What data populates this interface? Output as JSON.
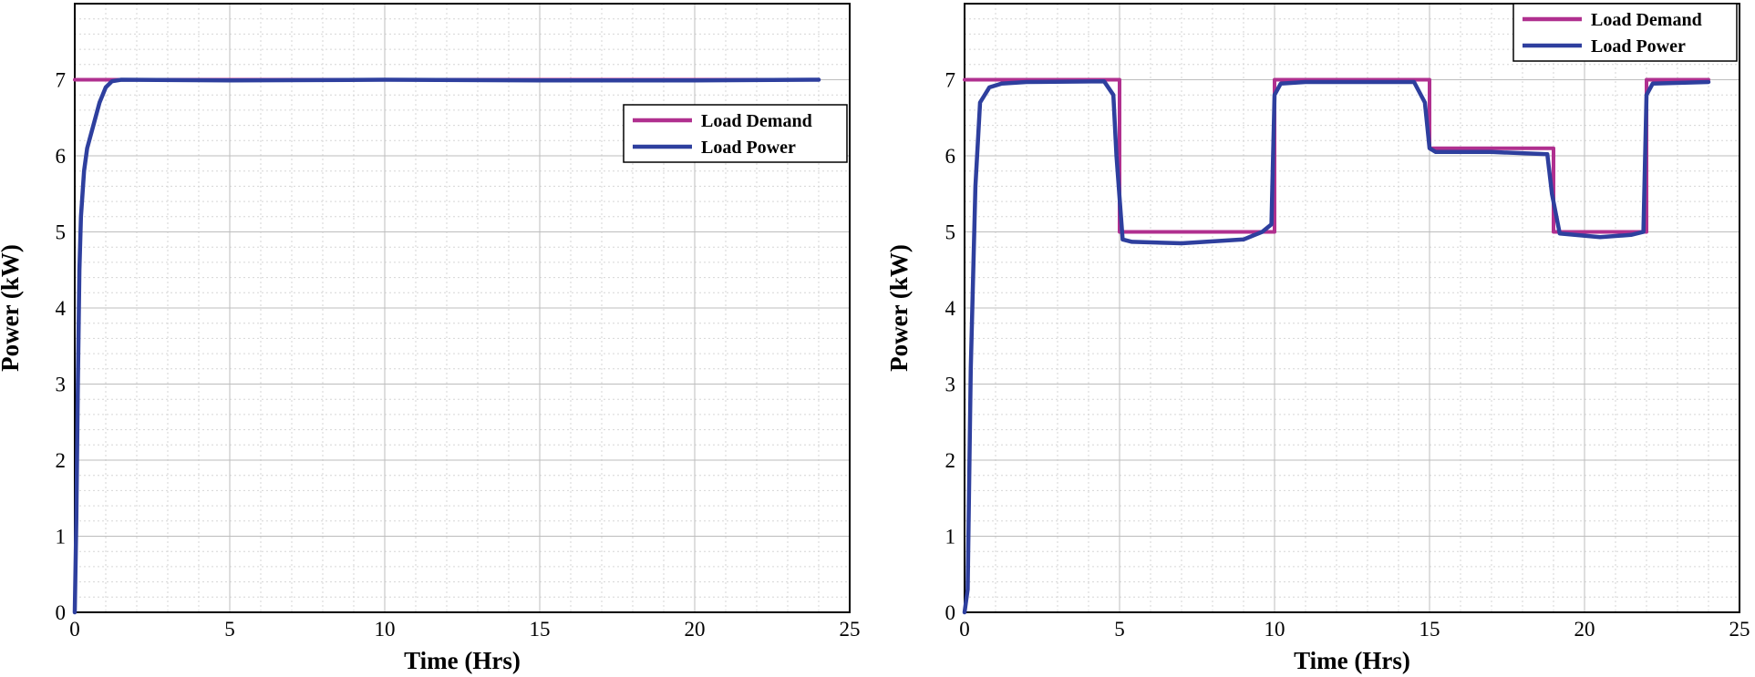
{
  "colors": {
    "load_demand": "#B0308F",
    "load_power": "#2E3F9E",
    "grid_major": "#bdbdbd",
    "grid_minor": "#d6d6d6"
  },
  "chart_data": [
    {
      "type": "line",
      "title": "",
      "xlabel": "Time (Hrs)",
      "ylabel": "Power (kW)",
      "xlim": [
        0,
        25
      ],
      "ylim": [
        0,
        8
      ],
      "xticks": [
        0,
        5,
        10,
        15,
        20,
        25
      ],
      "xtick_labels": [
        "0",
        "5",
        "10",
        "15",
        "20",
        "25"
      ],
      "yticks": [
        0,
        1,
        2,
        3,
        4,
        5,
        6,
        7
      ],
      "ytick_labels": [
        "0",
        "1",
        "2",
        "3",
        "4",
        "5",
        "6",
        "7"
      ],
      "grid": true,
      "legend_position": "upper-right",
      "series": [
        {
          "name": "Load Demand",
          "color": "#B0308F",
          "x": [
            0,
            24
          ],
          "y": [
            7,
            7
          ]
        },
        {
          "name": "Load Power",
          "color": "#2E3F9E",
          "x": [
            0,
            0.05,
            0.1,
            0.15,
            0.2,
            0.3,
            0.4,
            0.6,
            0.8,
            1.0,
            1.2,
            1.5,
            5,
            10,
            15,
            20,
            24
          ],
          "y": [
            0,
            1.2,
            3.0,
            4.5,
            5.2,
            5.8,
            6.1,
            6.4,
            6.7,
            6.9,
            6.98,
            7.0,
            6.99,
            7.0,
            6.99,
            6.99,
            7.0
          ]
        }
      ]
    },
    {
      "type": "line",
      "title": "",
      "xlabel": "Time (Hrs)",
      "ylabel": "Power (kW)",
      "xlim": [
        0,
        25
      ],
      "ylim": [
        0,
        8
      ],
      "xticks": [
        0,
        5,
        10,
        15,
        20,
        25
      ],
      "xtick_labels": [
        "0",
        "5",
        "10",
        "15",
        "20",
        "25"
      ],
      "yticks": [
        0,
        1,
        2,
        3,
        4,
        5,
        6,
        7
      ],
      "ytick_labels": [
        "0",
        "1",
        "2",
        "3",
        "4",
        "5",
        "6",
        "7"
      ],
      "grid": true,
      "legend_position": "top-right",
      "series": [
        {
          "name": "Load Demand",
          "color": "#B0308F",
          "x": [
            0,
            5,
            5,
            10,
            10,
            15,
            15,
            19,
            19,
            22,
            22,
            24
          ],
          "y": [
            7,
            7,
            5,
            5,
            7,
            7,
            6.1,
            6.1,
            5,
            5,
            7,
            7
          ]
        },
        {
          "name": "Load Power",
          "color": "#2E3F9E",
          "x": [
            0,
            0.1,
            0.2,
            0.35,
            0.5,
            0.8,
            1.2,
            2,
            4.5,
            4.8,
            4.9,
            5.1,
            5.4,
            7,
            9,
            9.6,
            9.9,
            10.0,
            10.2,
            11,
            14.5,
            14.85,
            15.0,
            15.2,
            17,
            18.8,
            18.95,
            19.2,
            20.5,
            21.5,
            21.9,
            22.0,
            22.2,
            24
          ],
          "y": [
            0,
            0.3,
            3.2,
            5.6,
            6.7,
            6.9,
            6.95,
            6.97,
            6.98,
            6.8,
            6.0,
            4.9,
            4.87,
            4.85,
            4.9,
            5.0,
            5.1,
            6.8,
            6.95,
            6.97,
            6.97,
            6.7,
            6.1,
            6.05,
            6.05,
            6.02,
            5.5,
            4.98,
            4.93,
            4.96,
            5.0,
            6.8,
            6.95,
            6.97
          ]
        }
      ]
    }
  ]
}
